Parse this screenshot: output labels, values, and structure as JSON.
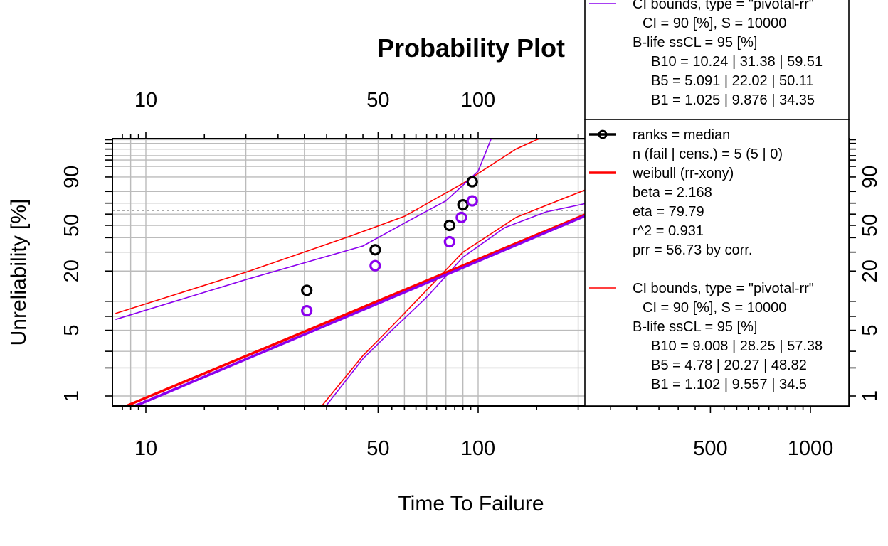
{
  "chart_data": {
    "type": "scatter",
    "title": "Probability Plot",
    "xlabel": "Time To Failure",
    "ylabel": "Unreliability [%]",
    "x_scale": "log",
    "y_scale": "weibull",
    "xlim": [
      8.1,
      1300
    ],
    "ylim": [
      0.8,
      99.99
    ],
    "grid": true,
    "x_ticks_bottom": [
      10,
      50,
      100,
      500,
      1000
    ],
    "x_ticks_top": [
      10,
      50,
      100
    ],
    "y_ticks": [
      1,
      5,
      20,
      50,
      90
    ],
    "legend_placement": "top-right",
    "series": [
      {
        "name": "ranks = median",
        "color": "#000000",
        "marker": "circle",
        "x": [
          30.5,
          49.0,
          82.0,
          90.0,
          96.0
        ],
        "y": [
          12.9,
          31.5,
          50.0,
          68.5,
          87.1
        ]
      },
      {
        "name": "",
        "color": "#8B00EE",
        "marker": "circle",
        "x": [
          30.5,
          49.0,
          82.0,
          89.0,
          96.0
        ],
        "y": [
          8.0,
          22.5,
          37.0,
          57.0,
          72.0
        ]
      },
      {
        "name": "weibull (rr-xony)",
        "color": "#FF0000",
        "line": true,
        "beta": 2.168,
        "eta": 79.79
      },
      {
        "name": "",
        "color": "#8B00EE",
        "line": true,
        "beta": 2.1,
        "eta": 90.0
      }
    ],
    "ci_bounds": [
      {
        "color": "#FF0000",
        "upper": {
          "x": [
            8.1,
            20,
            40,
            60,
            90,
            130,
            200
          ],
          "y": [
            7.5,
            19.5,
            40,
            58,
            86,
            99,
            99.99
          ]
        },
        "lower": {
          "x": [
            34,
            45,
            55,
            70,
            90,
            130,
            200,
            230
          ],
          "y": [
            0.8,
            2.7,
            5.5,
            13,
            30,
            57,
            79,
            85
          ]
        }
      },
      {
        "color": "#8B00EE",
        "upper": {
          "x": [
            8.1,
            20,
            45,
            60,
            80,
            100,
            115
          ],
          "y": [
            6.5,
            16.5,
            34,
            52,
            72,
            93,
            99.99
          ]
        },
        "lower": {
          "x": [
            35,
            45,
            55,
            70,
            90,
            120,
            160,
            230
          ],
          "y": [
            0.8,
            2.5,
            5,
            11,
            27,
            48,
            62,
            72
          ]
        }
      }
    ],
    "reference_line_y": 63.2,
    "legend_boxes": [
      {
        "lines": [
          {
            "text": "CI bounds, type = \"pivotal-rr\"",
            "color": "#8B00EE",
            "symbol": "line"
          },
          {
            "text": "CI = 90 [%], S = 10000",
            "indent": 1
          },
          {
            "text": "B-life ssCL = 95 [%]"
          },
          {
            "text": "B10 = 10.24 | 31.38 | 59.51",
            "indent": 2
          },
          {
            "text": "B5 = 5.091 | 22.02 | 50.11",
            "indent": 2
          },
          {
            "text": "B1 = 1.025 | 9.876 | 34.35",
            "indent": 2
          }
        ]
      },
      {
        "lines": [
          {
            "text": "ranks = median",
            "color": "#000000",
            "symbol": "point-line"
          },
          {
            "text": "n (fail | cens.) = 5 (5 | 0)"
          },
          {
            "text": "weibull (rr-xony)",
            "color": "#FF0000",
            "symbol": "thick-line"
          },
          {
            "text": "beta = 2.168"
          },
          {
            "text": "eta = 79.79"
          },
          {
            "text": "r^2 = 0.931"
          },
          {
            "text": "prr = 56.73 by corr."
          },
          {
            "text": ""
          },
          {
            "text": "CI bounds, type = \"pivotal-rr\"",
            "color": "#FF0000",
            "symbol": "line"
          },
          {
            "text": "CI = 90 [%], S = 10000",
            "indent": 1
          },
          {
            "text": "B-life ssCL = 95 [%]"
          },
          {
            "text": "B10 = 9.008 | 28.25 | 57.38",
            "indent": 2
          },
          {
            "text": "B5 = 4.78 | 20.27 | 48.82",
            "indent": 2
          },
          {
            "text": "B1 = 1.102 | 9.557 | 34.5",
            "indent": 2
          }
        ]
      }
    ]
  }
}
